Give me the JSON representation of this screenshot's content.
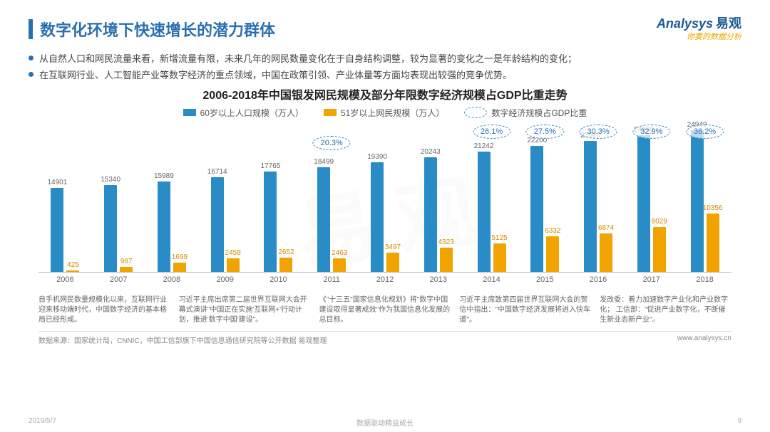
{
  "header": {
    "title": "数字化环境下快速增长的潜力群体",
    "brand_en": "Analysys",
    "brand_cn": "易观",
    "brand_tag": "你要的数据分析",
    "accent_color": "#2a6fb0"
  },
  "bullets": [
    "从自然人口和网民流量来看，新增流量有限，未来几年的网民数量变化在于自身结构调整，较为显著的变化之一是年龄结构的变化；",
    "在互联网行业、人工智能产业等数字经济的重点领域，中国在政策引领、产业体量等方面均表现出较强的竞争优势。"
  ],
  "chart": {
    "title": "2006-2018年中国银发网民规模及部分年限数字经济规模占GDP比重走势",
    "legend": {
      "series1": "60岁以上人口规模（万人）",
      "series2": "51岁以上网民规模（万人）",
      "series3": "数字经济规模占GDP比重"
    },
    "colors": {
      "bar_blue": "#2a8cc7",
      "bar_orange": "#f1a400",
      "bubble_border": "#2a8cc7",
      "axis": "#bbbbbb",
      "label": "#666666"
    },
    "y_max": 26000,
    "years": [
      "2006",
      "2007",
      "2008",
      "2009",
      "2010",
      "2011",
      "2012",
      "2013",
      "2014",
      "2015",
      "2016",
      "2017",
      "2018"
    ],
    "series_blue": [
      14901,
      15340,
      15989,
      16714,
      17765,
      18499,
      19390,
      20243,
      21242,
      22200,
      23086,
      24090,
      24949
    ],
    "series_orange": [
      425,
      987,
      1699,
      2458,
      2652,
      2463,
      3497,
      4323,
      5125,
      6332,
      6874,
      8029,
      10356
    ],
    "bubbles": [
      {
        "year": "2011",
        "label": "20.3%"
      },
      {
        "year": "2014",
        "label": "26.1%"
      },
      {
        "year": "2015",
        "label": "27.5%"
      },
      {
        "year": "2016",
        "label": "30.3%"
      },
      {
        "year": "2017",
        "label": "32.9%"
      },
      {
        "year": "2018",
        "label": "38.2%"
      }
    ],
    "notes": [
      "自手机网民数量规模化以来，互联网行业迎来移动端时代，中国数字经济的基本格局已经形成。",
      "习近平主席出席第二届世界互联网大会开幕式演讲\"中国正在实施'互联网+'行动计划，推进'数字中国'建设\"。",
      "《\"十三五\"国家信息化规划》将\"数字中国建设取得显著成效\"作为我国信息化发展的总目标。",
      "习近平主席致第四届世界互联网大会的贺信中指出：\"中国数字经济发展将进入快车道\"。",
      "发改委：着力加速数字产业化和产业数字化；\n工信部：\"促进产业数字化，不断催生新业态新产业\"。"
    ],
    "source_label": "数据来源：国家统计局，CNNIC，中国工信部旗下中国信息通信研究院等公开数据 易观整理",
    "source_url": "www.analysys.cn"
  },
  "footer": {
    "date": "2019/5/7",
    "center": "数据驱动精益成长",
    "page": "9"
  },
  "watermark": "易 观"
}
